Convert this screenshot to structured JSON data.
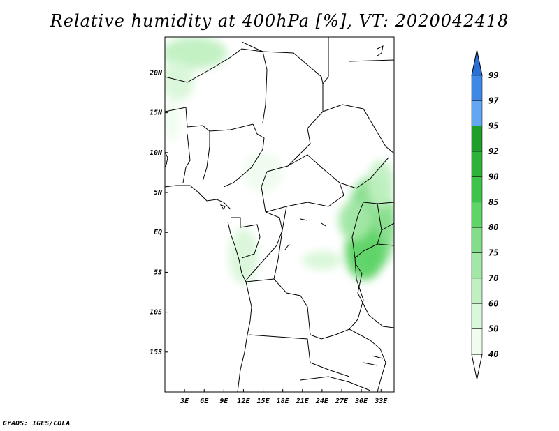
{
  "title": "Relative humidity at 400hPa [%], VT: 2020042418",
  "footer": "GrADS: IGES/COLA",
  "map": {
    "lat_labels": [
      "20N",
      "15N",
      "10N",
      "5N",
      "EQ",
      "5S",
      "10S",
      "15S"
    ],
    "lon_labels": [
      "3E",
      "6E",
      "9E",
      "12E",
      "15E",
      "18E",
      "21E",
      "24E",
      "27E",
      "30E",
      "33E"
    ],
    "lat_values": [
      20,
      15,
      10,
      5,
      0,
      -5,
      -10,
      -15
    ],
    "lon_values": [
      3,
      6,
      9,
      12,
      15,
      18,
      21,
      24,
      27,
      30,
      33
    ],
    "lon_range": [
      0,
      35
    ],
    "lat_range": [
      -20,
      24.5
    ],
    "moist_regions": [
      {
        "lon": 31.5,
        "lat": 1.0,
        "rx": 3.8,
        "ry": 6.0,
        "level": "75"
      },
      {
        "lon": 30.5,
        "lat": -2.5,
        "rx": 3.0,
        "ry": 3.5,
        "level": "80"
      },
      {
        "lon": 29.0,
        "lat": 1.5,
        "rx": 2.5,
        "ry": 2.5,
        "level": "70"
      },
      {
        "lon": 33.0,
        "lat": 6.0,
        "rx": 2.0,
        "ry": 3.0,
        "level": "60"
      },
      {
        "lon": 24.0,
        "lat": -3.5,
        "rx": 3.0,
        "ry": 1.2,
        "level": "50"
      },
      {
        "lon": 12.0,
        "lat": -3.0,
        "rx": 2.2,
        "ry": 3.5,
        "level": "50"
      },
      {
        "lon": 15.0,
        "lat": 7.5,
        "rx": 3.0,
        "ry": 2.5,
        "level": "40"
      },
      {
        "lon": 4.5,
        "lat": 22.5,
        "rx": 5.0,
        "ry": 2.0,
        "level": "60"
      },
      {
        "lon": 2.0,
        "lat": 19.0,
        "rx": 2.5,
        "ry": 2.5,
        "level": "50"
      },
      {
        "lon": 1.0,
        "lat": 14.0,
        "rx": 1.2,
        "ry": 2.5,
        "level": "40"
      }
    ]
  },
  "colorbar": {
    "labels": [
      "99",
      "97",
      "95",
      "92",
      "90",
      "85",
      "80",
      "75",
      "70",
      "60",
      "50",
      "40"
    ],
    "colors": [
      "#2a6fd6",
      "#3f88e6",
      "#63a6f2",
      "#1e9e2a",
      "#2db33a",
      "#3fc44b",
      "#5fd467",
      "#84dd89",
      "#a3e7a6",
      "#c0f0c1",
      "#d9f7d9",
      "#effcee"
    ],
    "top_triangle_color": "#2a6fd6",
    "bottom_triangle_color": "#ffffff"
  }
}
